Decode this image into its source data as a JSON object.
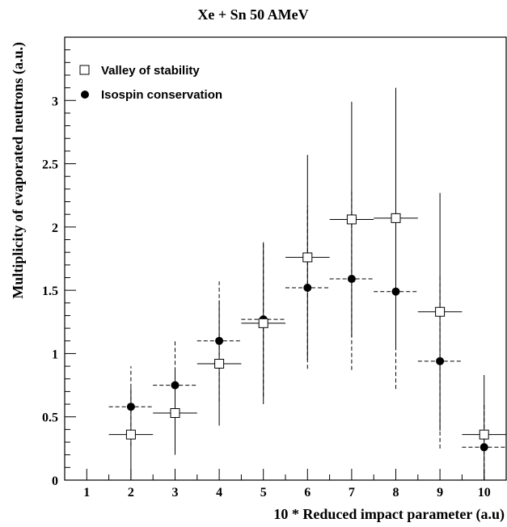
{
  "chart_data": {
    "type": "scatter",
    "title": "Xe + Sn 50 AMeV",
    "xlabel": "10 * Reduced impact parameter (a.u)",
    "ylabel": "Multiplicity of evaporated neutrons (a.u.)",
    "xlim": [
      0.5,
      10.5
    ],
    "ylim": [
      0,
      3.5
    ],
    "x_ticks": [
      1,
      2,
      3,
      4,
      5,
      6,
      7,
      8,
      9,
      10
    ],
    "y_ticks": [
      0,
      0.5,
      1,
      1.5,
      2,
      2.5,
      3
    ],
    "y_tick_labels": [
      "0",
      "0.5",
      "1",
      "1.5",
      "2",
      "2.5",
      "3"
    ],
    "grid": false,
    "legend_position": "top-left",
    "series": [
      {
        "name": "Valley of stability",
        "marker": "open-square",
        "line_style": "solid",
        "points": [
          {
            "x": 2,
            "y": 0.36,
            "xerr": 0.5,
            "ylo": 0.0,
            "yhi": 0.73
          },
          {
            "x": 3,
            "y": 0.53,
            "xerr": 0.5,
            "ylo": 0.2,
            "yhi": 0.87
          },
          {
            "x": 4,
            "y": 0.92,
            "xerr": 0.5,
            "ylo": 0.43,
            "yhi": 1.42
          },
          {
            "x": 5,
            "y": 1.24,
            "xerr": 0.5,
            "ylo": 0.6,
            "yhi": 1.88
          },
          {
            "x": 6,
            "y": 1.76,
            "xerr": 0.5,
            "ylo": 0.95,
            "yhi": 2.57
          },
          {
            "x": 7,
            "y": 2.06,
            "xerr": 0.5,
            "ylo": 1.13,
            "yhi": 2.99
          },
          {
            "x": 8,
            "y": 2.07,
            "xerr": 0.5,
            "ylo": 1.04,
            "yhi": 3.1
          },
          {
            "x": 9,
            "y": 1.33,
            "xerr": 0.5,
            "ylo": 0.39,
            "yhi": 2.27
          },
          {
            "x": 10,
            "y": 0.36,
            "xerr": 0.5,
            "ylo": 0.0,
            "yhi": 0.83
          }
        ]
      },
      {
        "name": "Isospin conservation",
        "marker": "filled-circle",
        "line_style": "dashed",
        "points": [
          {
            "x": 2,
            "y": 0.58,
            "xerr": 0.5,
            "ylo": 0.27,
            "yhi": 0.9
          },
          {
            "x": 3,
            "y": 0.75,
            "xerr": 0.5,
            "ylo": 0.4,
            "yhi": 1.1
          },
          {
            "x": 4,
            "y": 1.1,
            "xerr": 0.5,
            "ylo": 0.62,
            "yhi": 1.57
          },
          {
            "x": 5,
            "y": 1.27,
            "xerr": 0.5,
            "ylo": 0.66,
            "yhi": 1.88
          },
          {
            "x": 6,
            "y": 1.52,
            "xerr": 0.5,
            "ylo": 0.88,
            "yhi": 2.17
          },
          {
            "x": 7,
            "y": 1.59,
            "xerr": 0.5,
            "ylo": 0.87,
            "yhi": 2.3
          },
          {
            "x": 8,
            "y": 1.49,
            "xerr": 0.5,
            "ylo": 0.72,
            "yhi": 2.27
          },
          {
            "x": 9,
            "y": 0.94,
            "xerr": 0.5,
            "ylo": 0.25,
            "yhi": 1.63
          },
          {
            "x": 10,
            "y": 0.26,
            "xerr": 0.5,
            "ylo": 0.0,
            "yhi": 0.6
          }
        ]
      }
    ]
  }
}
